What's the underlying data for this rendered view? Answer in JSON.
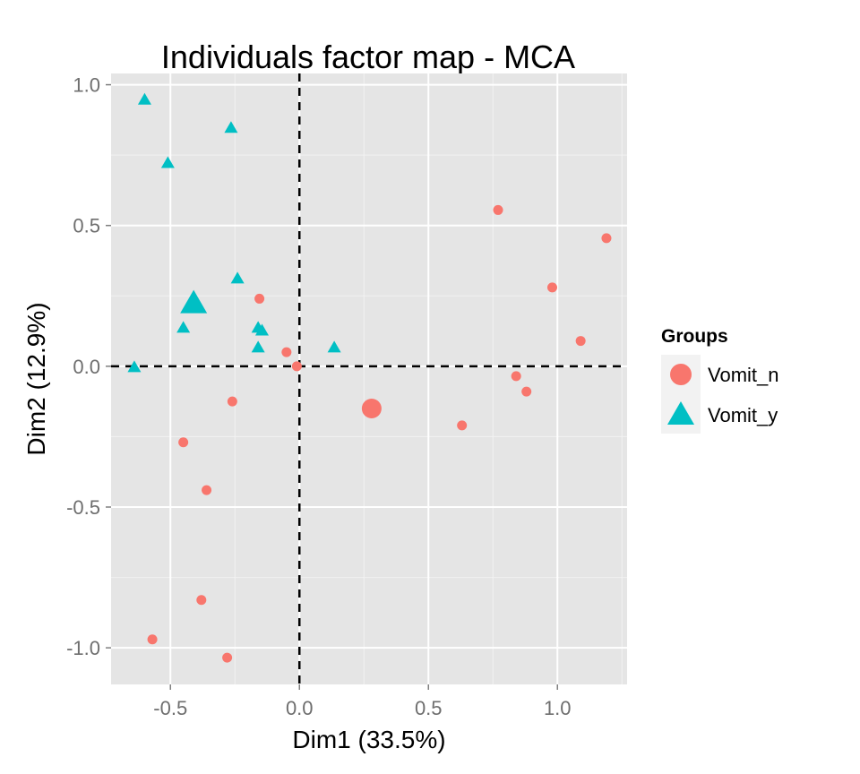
{
  "chart_data": {
    "type": "scatter",
    "title": "Individuals factor map - MCA",
    "xlabel": "Dim1 (33.5%)",
    "ylabel": "Dim2 (12.9%)",
    "xlim": [
      -0.73,
      1.27
    ],
    "ylim": [
      -1.13,
      1.04
    ],
    "x_ticks": [
      -0.5,
      0.0,
      0.5,
      1.0
    ],
    "x_tick_labels": [
      "-0.5",
      "0.0",
      "0.5",
      "1.0"
    ],
    "y_ticks": [
      -1.0,
      -0.5,
      0.0,
      0.5,
      1.0
    ],
    "y_tick_labels": [
      "-1.0",
      "-0.5",
      "0.0",
      "0.5",
      "1.0"
    ],
    "grid": true,
    "reference_lines": {
      "x": 0,
      "y": 0,
      "style": "dashed"
    },
    "legend": {
      "title": "Groups",
      "position": "right",
      "entries": [
        {
          "label": "Vomit_n",
          "shape": "circle",
          "color": "#F8766D"
        },
        {
          "label": "Vomit_y",
          "shape": "triangle",
          "color": "#00BFC4"
        }
      ]
    },
    "series": [
      {
        "name": "Vomit_n",
        "shape": "circle",
        "color": "#F8766D",
        "points": [
          {
            "x": 0.77,
            "y": 0.555
          },
          {
            "x": 1.19,
            "y": 0.455
          },
          {
            "x": 0.98,
            "y": 0.28
          },
          {
            "x": -0.155,
            "y": 0.24
          },
          {
            "x": 1.09,
            "y": 0.09
          },
          {
            "x": -0.05,
            "y": 0.05
          },
          {
            "x": -0.01,
            "y": 0.0
          },
          {
            "x": 0.84,
            "y": -0.035
          },
          {
            "x": 0.88,
            "y": -0.09
          },
          {
            "x": -0.26,
            "y": -0.125
          },
          {
            "x": 0.63,
            "y": -0.21
          },
          {
            "x": -0.45,
            "y": -0.27
          },
          {
            "x": -0.36,
            "y": -0.44
          },
          {
            "x": -0.38,
            "y": -0.83
          },
          {
            "x": -0.57,
            "y": -0.97
          },
          {
            "x": -0.28,
            "y": -1.035
          }
        ],
        "centroid": {
          "x": 0.28,
          "y": -0.15
        }
      },
      {
        "name": "Vomit_y",
        "shape": "triangle",
        "color": "#00BFC4",
        "points": [
          {
            "x": -0.6,
            "y": 0.945
          },
          {
            "x": -0.265,
            "y": 0.845
          },
          {
            "x": -0.51,
            "y": 0.72
          },
          {
            "x": -0.24,
            "y": 0.31
          },
          {
            "x": -0.16,
            "y": 0.135
          },
          {
            "x": -0.45,
            "y": 0.135
          },
          {
            "x": -0.145,
            "y": 0.125
          },
          {
            "x": -0.16,
            "y": 0.065
          },
          {
            "x": 0.135,
            "y": 0.065
          },
          {
            "x": -0.64,
            "y": -0.005
          }
        ],
        "centroid": {
          "x": -0.41,
          "y": 0.22
        }
      }
    ]
  }
}
